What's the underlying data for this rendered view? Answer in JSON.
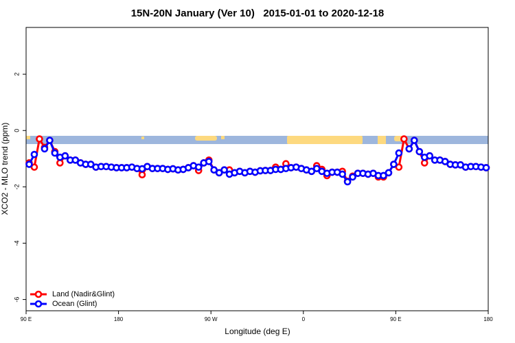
{
  "chart_data": {
    "type": "line",
    "title": "15N-20N January (Ver 10)   2015-01-01 to 2020-12-18",
    "x_label": "Longitude (deg E)",
    "y_label": "XCO2 - MLO trend (ppm)",
    "xlim": [
      90,
      540
    ],
    "xticks": [
      {
        "value": 90,
        "label": "90 E"
      },
      180,
      {
        "value": 270,
        "label": "90 W"
      },
      {
        "value": 360,
        "label": "0"
      },
      {
        "value": 450,
        "label": "90 E"
      },
      {
        "value": 540,
        "label": "180"
      }
    ],
    "ylim": [
      -6.4,
      3.66
    ],
    "yticks": [
      -6,
      -4,
      -2,
      0,
      2
    ],
    "legend": "bottomleft",
    "x": [
      93,
      98,
      103,
      108,
      113,
      118,
      123,
      128,
      133,
      138,
      143,
      148,
      153,
      158,
      163,
      168,
      173,
      178,
      183,
      188,
      193,
      198,
      203,
      208,
      213,
      218,
      223,
      228,
      233,
      238,
      243,
      248,
      253,
      258,
      263,
      268,
      273,
      278,
      283,
      288,
      293,
      298,
      303,
      308,
      313,
      318,
      323,
      328,
      333,
      338,
      343,
      348,
      353,
      358,
      363,
      368,
      373,
      378,
      383,
      388,
      393,
      398,
      403,
      408,
      413,
      418,
      423,
      428,
      433,
      438,
      443,
      448,
      453,
      458,
      463,
      468,
      473,
      478,
      483,
      488,
      493,
      498,
      503,
      508,
      513,
      518,
      523,
      528,
      533,
      538
    ],
    "series": [
      {
        "name": "Land (Nadir&Glint)",
        "color": "#ff0000",
        "values": [
          -1.15,
          -1.3,
          -0.3,
          -0.6,
          -0.35,
          -0.75,
          -1.15,
          -0.9,
          -1.05,
          -1.05,
          -1.15,
          -1.2,
          -1.2,
          -1.3,
          -1.28,
          -1.28,
          -1.3,
          -1.32,
          -1.32,
          -1.32,
          -1.3,
          -1.35,
          -1.57,
          -1.28,
          -1.35,
          -1.35,
          -1.35,
          -1.38,
          -1.36,
          -1.4,
          -1.38,
          -1.32,
          -1.25,
          -1.42,
          -1.15,
          -1.05,
          -1.4,
          -1.5,
          -1.4,
          -1.4,
          -1.5,
          -1.45,
          -1.5,
          -1.45,
          -1.48,
          -1.43,
          -1.42,
          -1.42,
          -1.3,
          -1.38,
          -1.18,
          -1.32,
          -1.3,
          -1.35,
          -1.4,
          -1.45,
          -1.25,
          -1.38,
          -1.6,
          -1.48,
          -1.48,
          -1.45,
          -1.8,
          -1.62,
          -1.52,
          -1.52,
          -1.55,
          -1.52,
          -1.65,
          -1.65,
          -1.5,
          -1.2,
          -1.3,
          -0.3,
          -0.65,
          -0.35,
          -0.75,
          -1.15,
          -0.9,
          -1.05,
          -1.05,
          -1.1,
          -1.2,
          -1.22,
          -1.22,
          -1.3,
          -1.28,
          -1.28,
          -1.3,
          -1.32
        ]
      },
      {
        "name": "Ocean (Glint)",
        "color": "#0000ff",
        "values": [
          -1.2,
          -0.85,
          null,
          -0.65,
          -0.35,
          -0.8,
          -0.95,
          -0.9,
          -1.05,
          -1.05,
          -1.15,
          -1.2,
          -1.2,
          -1.3,
          -1.28,
          -1.28,
          -1.3,
          -1.32,
          -1.32,
          -1.32,
          -1.3,
          -1.35,
          -1.36,
          -1.28,
          -1.35,
          -1.35,
          -1.35,
          -1.38,
          -1.36,
          -1.4,
          -1.38,
          -1.32,
          -1.25,
          -1.3,
          -1.15,
          -1.1,
          -1.4,
          -1.5,
          -1.4,
          -1.55,
          -1.5,
          -1.45,
          -1.5,
          -1.45,
          -1.48,
          -1.43,
          -1.42,
          -1.42,
          -1.38,
          -1.38,
          -1.35,
          -1.32,
          -1.3,
          -1.35,
          -1.4,
          -1.45,
          -1.35,
          -1.45,
          -1.52,
          -1.48,
          -1.48,
          -1.55,
          -1.82,
          -1.65,
          -1.52,
          -1.52,
          -1.55,
          -1.52,
          -1.6,
          -1.6,
          -1.5,
          -1.2,
          -0.8,
          null,
          -0.65,
          -0.35,
          -0.75,
          -0.95,
          -0.9,
          -1.05,
          -1.05,
          -1.1,
          -1.2,
          -1.22,
          -1.22,
          -1.3,
          -1.28,
          -1.28,
          -1.3,
          -1.32
        ]
      }
    ]
  }
}
